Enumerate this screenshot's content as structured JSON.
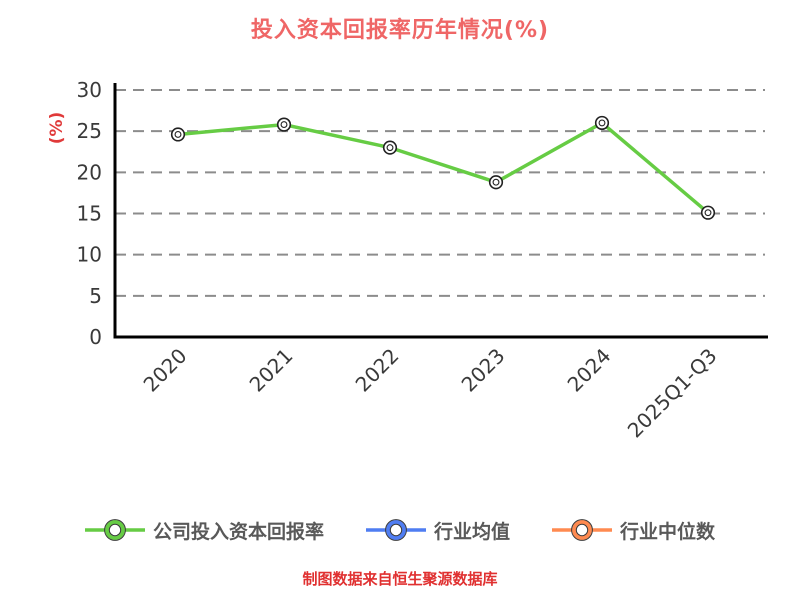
{
  "page": {
    "footer": "制图数据来自恒生聚源数据库"
  },
  "chart_data": {
    "type": "line",
    "title": "投入资本回报率历年情况(%)",
    "ylabel": "(%)",
    "xlabel": "",
    "categories": [
      "2020",
      "2021",
      "2022",
      "2023",
      "2024",
      "2025Q1-Q3"
    ],
    "series": [
      {
        "name": "公司投入资本回报率",
        "color": "#66cc44",
        "values": [
          24.6,
          25.8,
          23.0,
          18.8,
          26.0,
          15.1
        ]
      },
      {
        "name": "行业均值",
        "color": "#4f7df2",
        "values": []
      },
      {
        "name": "行业中位数",
        "color": "#ff8a50",
        "values": []
      }
    ],
    "ylim": [
      0,
      30
    ],
    "yticks": [
      0,
      5,
      10,
      15,
      20,
      25,
      30
    ],
    "grid": "horizontal-dashed",
    "legend_position": "bottom"
  },
  "style": {
    "title_color": "#ef6666",
    "ylabel_color": "#e03a3a",
    "footer_color": "#e03030",
    "axis_color": "#000000",
    "grid_color": "#8c8c8c",
    "tick_label_color": "#3a3a3a",
    "marker_edge_color": "#222222",
    "marker_face_color": "#ffffff",
    "legend_text_color": "#595959",
    "legend_ring_edge_color": "#3a3a3a",
    "background_color": "#ffffff"
  }
}
